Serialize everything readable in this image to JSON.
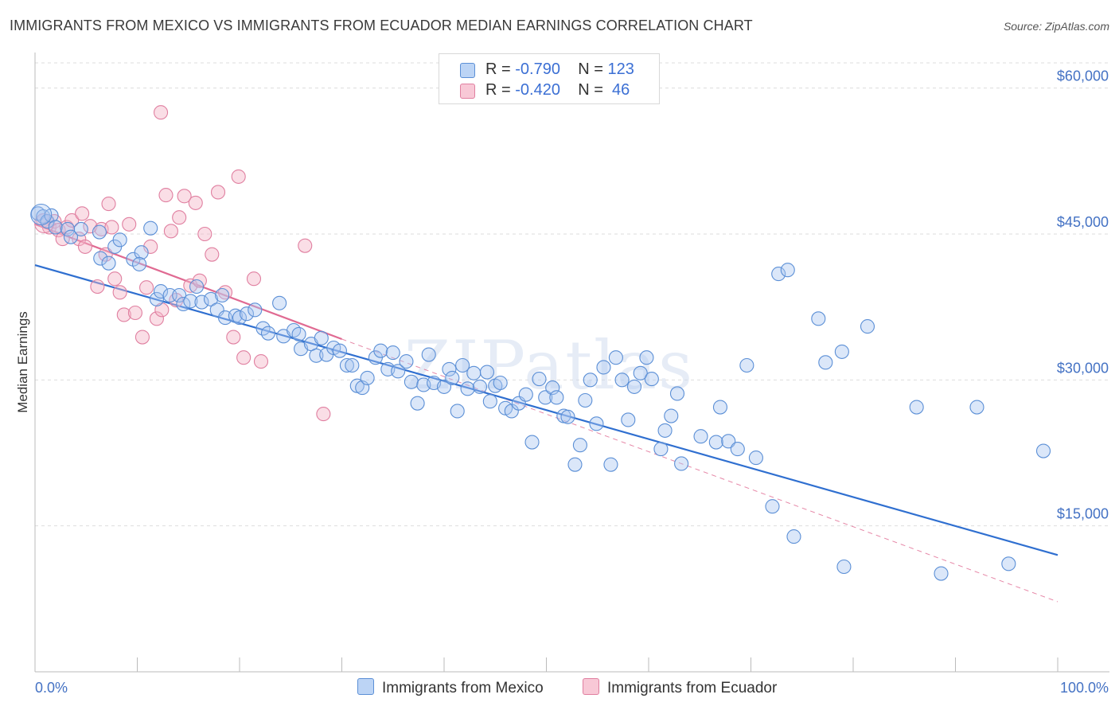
{
  "header": {
    "title": "IMMIGRANTS FROM MEXICO VS IMMIGRANTS FROM ECUADOR MEDIAN EARNINGS CORRELATION CHART",
    "source": "Source: ZipAtlas.com"
  },
  "legend": {
    "rows": [
      {
        "r_label": "R =",
        "r_value": "-0.790",
        "n_label": "N =",
        "n_value": "123"
      },
      {
        "r_label": "R =",
        "r_value": "-0.420",
        "n_label": "N =",
        "n_value": "46"
      }
    ]
  },
  "colors": {
    "mexico_fill": "#a9c6f0",
    "mexico_stroke": "#5b8fd6",
    "mexico_line": "#2f6fd0",
    "ecuador_fill": "#f5b6c8",
    "ecuador_stroke": "#e07fa0",
    "ecuador_line": "#e06a92",
    "grid": "#dddddd",
    "axis_label": "#4472c4"
  },
  "chart_data": {
    "type": "scatter",
    "title": "IMMIGRANTS FROM MEXICO VS IMMIGRANTS FROM ECUADOR MEDIAN EARNINGS CORRELATION CHART",
    "xlabel": "",
    "ylabel": "Median Earnings",
    "xlim": [
      0,
      100
    ],
    "ylim": [
      0,
      63000
    ],
    "x_tick_labels": [
      "0.0%",
      "100.0%"
    ],
    "y_ticks": [
      15000,
      30000,
      45000,
      60000
    ],
    "y_tick_labels": [
      "$15,000",
      "$30,000",
      "$45,000",
      "$60,000"
    ],
    "grid": "horizontal dashed",
    "legend_position": "top-center",
    "series": [
      {
        "name": "Immigrants from Mexico",
        "r": -0.79,
        "n": 123,
        "trend": {
          "x": [
            0,
            100
          ],
          "y": [
            41800,
            12000
          ]
        },
        "points": [
          [
            0.3,
            47100
          ],
          [
            0.8,
            46800
          ],
          [
            1.2,
            46300
          ],
          [
            1.6,
            46900
          ],
          [
            2.0,
            45700
          ],
          [
            3.2,
            45500
          ],
          [
            3.5,
            44700
          ],
          [
            4.5,
            45500
          ],
          [
            6.3,
            45200
          ],
          [
            6.4,
            42500
          ],
          [
            7.2,
            42000
          ],
          [
            7.8,
            43700
          ],
          [
            8.3,
            44400
          ],
          [
            9.6,
            42400
          ],
          [
            10.4,
            43100
          ],
          [
            10.2,
            41900
          ],
          [
            11.3,
            45600
          ],
          [
            11.9,
            38300
          ],
          [
            12.3,
            39100
          ],
          [
            13.2,
            38700
          ],
          [
            14.1,
            38700
          ],
          [
            14.5,
            37800
          ],
          [
            15.2,
            38100
          ],
          [
            15.8,
            39600
          ],
          [
            16.3,
            38000
          ],
          [
            17.2,
            38300
          ],
          [
            17.8,
            37200
          ],
          [
            18.3,
            38700
          ],
          [
            18.6,
            36400
          ],
          [
            19.6,
            36600
          ],
          [
            20.0,
            36400
          ],
          [
            20.7,
            36800
          ],
          [
            21.5,
            37200
          ],
          [
            22.3,
            35300
          ],
          [
            22.8,
            34800
          ],
          [
            23.9,
            37900
          ],
          [
            24.3,
            34500
          ],
          [
            25.3,
            35100
          ],
          [
            25.8,
            34700
          ],
          [
            26.0,
            33200
          ],
          [
            27.0,
            33700
          ],
          [
            27.5,
            32500
          ],
          [
            28.0,
            34300
          ],
          [
            28.5,
            32600
          ],
          [
            29.2,
            33300
          ],
          [
            29.8,
            33000
          ],
          [
            30.5,
            31500
          ],
          [
            31.0,
            31500
          ],
          [
            31.5,
            29400
          ],
          [
            32.0,
            29200
          ],
          [
            32.5,
            30200
          ],
          [
            33.3,
            32300
          ],
          [
            33.8,
            33000
          ],
          [
            34.5,
            31100
          ],
          [
            35.0,
            32800
          ],
          [
            35.5,
            30900
          ],
          [
            36.3,
            31900
          ],
          [
            36.8,
            29800
          ],
          [
            37.4,
            27600
          ],
          [
            38.0,
            29500
          ],
          [
            38.5,
            32600
          ],
          [
            39.0,
            29700
          ],
          [
            40.0,
            29300
          ],
          [
            40.5,
            31100
          ],
          [
            40.8,
            30200
          ],
          [
            41.3,
            26800
          ],
          [
            41.8,
            31500
          ],
          [
            42.3,
            29100
          ],
          [
            42.9,
            30700
          ],
          [
            43.5,
            29300
          ],
          [
            44.2,
            30800
          ],
          [
            44.5,
            27800
          ],
          [
            45.0,
            29400
          ],
          [
            45.5,
            29700
          ],
          [
            46.0,
            27100
          ],
          [
            46.6,
            26800
          ],
          [
            47.3,
            27600
          ],
          [
            48.0,
            28500
          ],
          [
            48.6,
            23600
          ],
          [
            49.3,
            30100
          ],
          [
            49.9,
            28200
          ],
          [
            50.6,
            29200
          ],
          [
            51.0,
            28200
          ],
          [
            51.7,
            26300
          ],
          [
            52.1,
            26200
          ],
          [
            52.8,
            21300
          ],
          [
            53.3,
            23300
          ],
          [
            53.8,
            27900
          ],
          [
            54.3,
            30000
          ],
          [
            54.9,
            25500
          ],
          [
            55.6,
            31300
          ],
          [
            56.3,
            21300
          ],
          [
            56.8,
            32300
          ],
          [
            57.4,
            30000
          ],
          [
            58.0,
            25900
          ],
          [
            58.6,
            29300
          ],
          [
            59.2,
            30700
          ],
          [
            59.8,
            32300
          ],
          [
            60.3,
            30100
          ],
          [
            61.2,
            22900
          ],
          [
            61.6,
            24800
          ],
          [
            62.2,
            26300
          ],
          [
            62.8,
            28600
          ],
          [
            63.2,
            21400
          ],
          [
            65.1,
            24200
          ],
          [
            66.6,
            23600
          ],
          [
            67.0,
            27200
          ],
          [
            67.8,
            23700
          ],
          [
            68.7,
            22900
          ],
          [
            69.6,
            31500
          ],
          [
            70.5,
            22000
          ],
          [
            72.1,
            17000
          ],
          [
            72.7,
            40900
          ],
          [
            73.6,
            41300
          ],
          [
            74.2,
            13900
          ],
          [
            76.6,
            36300
          ],
          [
            77.3,
            31800
          ],
          [
            78.9,
            32900
          ],
          [
            79.1,
            10800
          ],
          [
            81.4,
            35500
          ],
          [
            86.2,
            27200
          ],
          [
            88.6,
            10100
          ],
          [
            92.1,
            27200
          ],
          [
            95.2,
            11100
          ],
          [
            98.6,
            22700
          ]
        ]
      },
      {
        "name": "Immigrants from Ecuador",
        "r": -0.42,
        "n": 46,
        "trend": {
          "x": [
            0,
            30
          ],
          "y": [
            46000,
            34200
          ]
        },
        "trend_extension": {
          "x": [
            30,
            100
          ],
          "y": [
            34200,
            7200
          ]
        },
        "points": [
          [
            0.8,
            46400
          ],
          [
            1.4,
            45700
          ],
          [
            1.9,
            46300
          ],
          [
            2.3,
            45400
          ],
          [
            2.7,
            44500
          ],
          [
            3.1,
            45700
          ],
          [
            3.6,
            46400
          ],
          [
            4.3,
            44500
          ],
          [
            4.6,
            47100
          ],
          [
            4.9,
            43700
          ],
          [
            5.4,
            45800
          ],
          [
            6.1,
            39600
          ],
          [
            6.5,
            45500
          ],
          [
            6.9,
            42900
          ],
          [
            7.2,
            48100
          ],
          [
            7.5,
            45700
          ],
          [
            7.8,
            40400
          ],
          [
            8.3,
            39000
          ],
          [
            8.7,
            36700
          ],
          [
            9.2,
            46000
          ],
          [
            9.8,
            36900
          ],
          [
            10.5,
            34400
          ],
          [
            10.9,
            39500
          ],
          [
            11.3,
            43700
          ],
          [
            11.9,
            36300
          ],
          [
            12.4,
            37200
          ],
          [
            12.8,
            49000
          ],
          [
            13.3,
            45300
          ],
          [
            13.8,
            38200
          ],
          [
            14.1,
            46700
          ],
          [
            14.6,
            48900
          ],
          [
            15.2,
            39700
          ],
          [
            15.7,
            48200
          ],
          [
            16.1,
            40200
          ],
          [
            16.6,
            45000
          ],
          [
            17.3,
            42900
          ],
          [
            17.9,
            49300
          ],
          [
            18.6,
            39000
          ],
          [
            19.4,
            34400
          ],
          [
            19.9,
            50900
          ],
          [
            20.4,
            32300
          ],
          [
            21.4,
            40400
          ],
          [
            22.1,
            31900
          ],
          [
            26.4,
            43800
          ],
          [
            28.2,
            26500
          ],
          [
            12.3,
            57500
          ]
        ]
      }
    ]
  },
  "bottom_legend": {
    "items": [
      {
        "label": "Immigrants from Mexico"
      },
      {
        "label": "Immigrants from Ecuador"
      }
    ]
  },
  "watermark": "ZIPatlas"
}
